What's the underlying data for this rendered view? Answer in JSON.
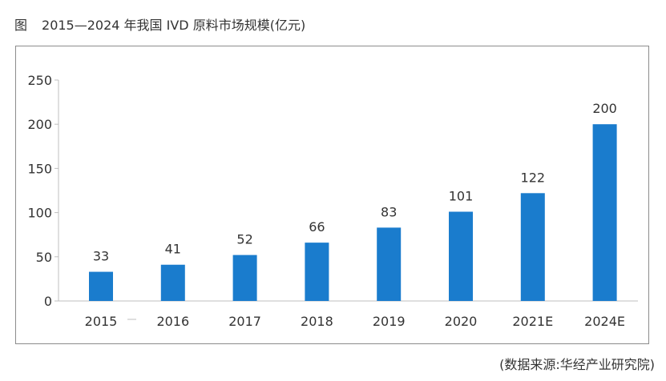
{
  "caption": {
    "label": "图",
    "text": "2015—2024 年我国 IVD 原料市场规模(亿元)"
  },
  "source": "(数据来源:华经产业研究院)",
  "colors": {
    "bar": "#1a7ccd",
    "axis": "#bfbfbf",
    "text": "#333333"
  },
  "chart_data": {
    "type": "bar",
    "title": "2015—2024 年我国 IVD 原料市场规模(亿元)",
    "categories": [
      "2015",
      "2016",
      "2017",
      "2018",
      "2019",
      "2020",
      "2021E",
      "2024E"
    ],
    "values": [
      33,
      41,
      52,
      66,
      83,
      101,
      122,
      200
    ],
    "yticks": [
      0,
      50,
      100,
      150,
      200,
      250
    ],
    "ylim": [
      0,
      250
    ],
    "xlabel": "",
    "ylabel": "",
    "grid": false,
    "legend": "none"
  }
}
